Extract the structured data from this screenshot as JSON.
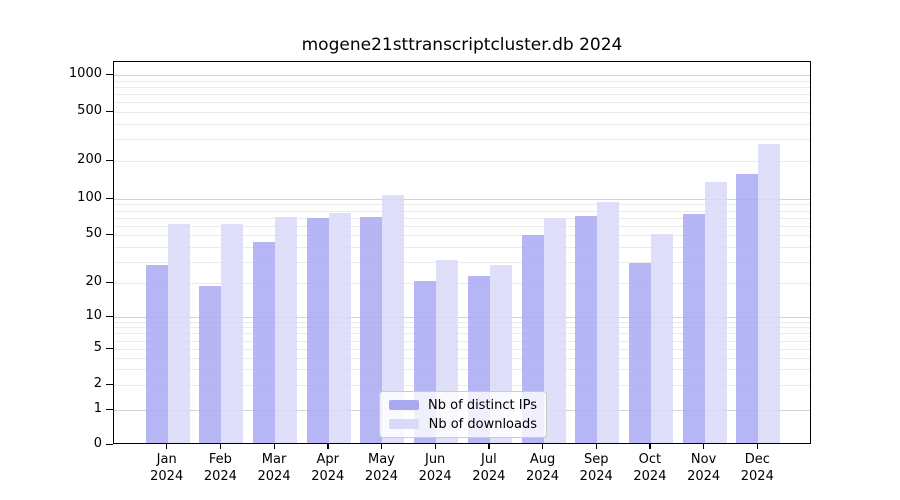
{
  "title": "mogene21sttranscriptcluster.db 2024",
  "chart_data": {
    "type": "bar",
    "title": "mogene21sttranscriptcluster.db 2024",
    "categories": [
      "Jan",
      "Feb",
      "Mar",
      "Apr",
      "May",
      "Jun",
      "Jul",
      "Aug",
      "Sep",
      "Oct",
      "Nov",
      "Dec"
    ],
    "x_year_label": "2024",
    "series": [
      {
        "name": "Nb of distinct IPs",
        "color": "#a9a9f2",
        "values": [
          27,
          18,
          42,
          67,
          68,
          20,
          22,
          48,
          69,
          28,
          72,
          152
        ]
      },
      {
        "name": "Nb of downloads",
        "color": "#d9d9f8",
        "values": [
          60,
          60,
          68,
          73,
          103,
          30,
          27,
          67,
          91,
          49,
          132,
          265
        ]
      }
    ],
    "y_ticks": [
      1000,
      500,
      200,
      100,
      50,
      20,
      10,
      5,
      2,
      1,
      0
    ],
    "yscale": "symlog",
    "ylim": [
      0,
      1150
    ],
    "grid": true,
    "legend_position": "lower center",
    "axis_color": "#000000",
    "major_grid_color": "#d3d3d3",
    "minor_grid_color": "#ebebeb"
  }
}
